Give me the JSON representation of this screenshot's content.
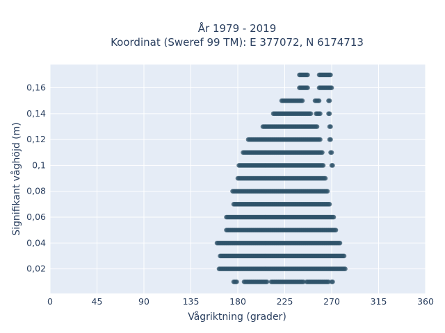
{
  "chart_data": {
    "type": "scatter",
    "title_line1": "År 1979 - 2019",
    "title_line2": "Koordinat (Sweref 99 TM): E 377072, N 6174713",
    "xlabel": "Vågriktning (grader)",
    "ylabel": "Signifikant våghöjd (m)",
    "xlim": [
      0,
      360
    ],
    "ylim": [
      0.001,
      0.178
    ],
    "x_ticks": [
      0,
      45,
      90,
      135,
      180,
      225,
      270,
      315,
      360
    ],
    "x_tick_labels": [
      "0",
      "45",
      "90",
      "135",
      "180",
      "225",
      "270",
      "315",
      "360"
    ],
    "y_ticks": [
      0.02,
      0.04,
      0.06,
      0.08,
      0.1,
      0.12,
      0.14,
      0.16
    ],
    "y_tick_labels": [
      "0,02",
      "0,04",
      "0,06",
      "0,08",
      "0,1",
      "0,12",
      "0,14",
      "0,16"
    ],
    "grid": true,
    "marker_color": "#2f5369",
    "plot_background": "#e5ecf6",
    "bands": [
      {
        "y": 0.01,
        "segments": [
          [
            176,
            179
          ],
          [
            186,
            208
          ],
          [
            212,
            243
          ],
          [
            246,
            267
          ],
          [
            270,
            271
          ]
        ]
      },
      {
        "y": 0.02,
        "segments": [
          [
            162,
            283
          ]
        ]
      },
      {
        "y": 0.03,
        "segments": [
          [
            163,
            282
          ]
        ]
      },
      {
        "y": 0.04,
        "segments": [
          [
            160,
            278
          ]
        ]
      },
      {
        "y": 0.05,
        "segments": [
          [
            169,
            274
          ]
        ]
      },
      {
        "y": 0.06,
        "segments": [
          [
            169,
            272
          ]
        ]
      },
      {
        "y": 0.07,
        "segments": [
          [
            176,
            268
          ]
        ]
      },
      {
        "y": 0.08,
        "segments": [
          [
            175,
            266
          ]
        ]
      },
      {
        "y": 0.09,
        "segments": [
          [
            180,
            264
          ]
        ]
      },
      {
        "y": 0.1,
        "segments": [
          [
            181,
            262
          ],
          [
            270,
            271
          ]
        ]
      },
      {
        "y": 0.11,
        "segments": [
          [
            185,
            261
          ],
          [
            269,
            270
          ]
        ]
      },
      {
        "y": 0.12,
        "segments": [
          [
            190,
            259
          ],
          [
            268,
            269
          ]
        ]
      },
      {
        "y": 0.13,
        "segments": [
          [
            204,
            256
          ],
          [
            268,
            269
          ]
        ]
      },
      {
        "y": 0.14,
        "segments": [
          [
            214,
            250
          ],
          [
            255,
            259
          ],
          [
            267,
            268
          ]
        ]
      },
      {
        "y": 0.15,
        "segments": [
          [
            222,
            242
          ],
          [
            254,
            258
          ],
          [
            267,
            268
          ]
        ]
      },
      {
        "y": 0.16,
        "segments": [
          [
            239,
            247
          ],
          [
            258,
            270
          ]
        ]
      },
      {
        "y": 0.17,
        "segments": [
          [
            239,
            247
          ],
          [
            258,
            269
          ]
        ]
      }
    ]
  }
}
